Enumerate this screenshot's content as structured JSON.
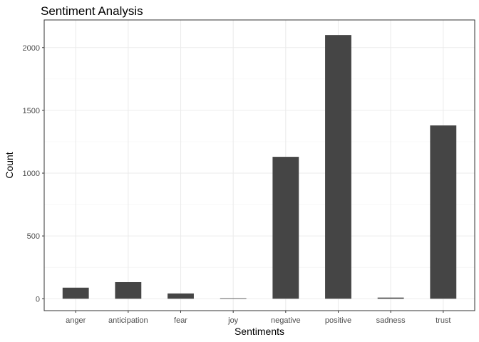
{
  "chart_data": {
    "type": "bar",
    "title": "Sentiment Analysis",
    "xlabel": "Sentiments",
    "ylabel": "Count",
    "categories": [
      "anger",
      "anticipation",
      "fear",
      "joy",
      "negative",
      "positive",
      "sadness",
      "trust"
    ],
    "values": [
      88,
      132,
      42,
      4,
      1130,
      2100,
      9,
      1380
    ],
    "ylim": [
      -95,
      2220
    ],
    "yticks": [
      0,
      500,
      1000,
      1500,
      2000
    ],
    "grid": true,
    "legend": "none",
    "bar_color": "#454545",
    "background": "#ffffff",
    "grid_color": "#ebebeb"
  }
}
